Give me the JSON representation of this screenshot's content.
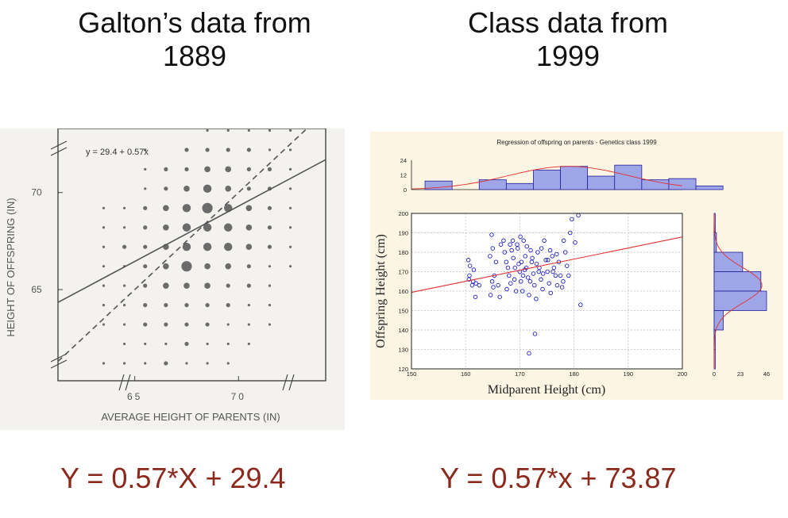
{
  "headings": {
    "left": [
      "Galton’s data from",
      "1889"
    ],
    "right": [
      "Class data from",
      "1999"
    ]
  },
  "equations": {
    "left": "Y = 0.57*X + 29.4",
    "right": "Y = 0.57*x + 73.87"
  },
  "colors": {
    "equation_text": "#8b2a1c",
    "galton_dots": "#6b6b6b",
    "class_points": "#2020c8",
    "regression_line": "#e03030",
    "histogram_fill": "#9fa6e8"
  },
  "chart_data": [
    {
      "type": "scatter",
      "title": "",
      "xlabel": "AVERAGE HEIGHT OF PARENTS (IN)",
      "ylabel": "HEIGHT OF OFFSPRING (IN)",
      "x_ticks": [
        "65",
        "70"
      ],
      "y_ticks": [
        "70",
        "65"
      ],
      "xlim": [
        61.3,
        74.2
      ],
      "ylim": [
        60.3,
        73.3
      ],
      "annotation": "y = 29.4 + 0.57x",
      "regression": {
        "slope": 0.57,
        "intercept": 29.4
      },
      "identity_line": true,
      "grid": false,
      "bubbles": [
        {
          "x": 68.5,
          "y": 73.2,
          "r": 1
        },
        {
          "x": 69.5,
          "y": 73.2,
          "r": 1
        },
        {
          "x": 70.5,
          "y": 73.2,
          "r": 1
        },
        {
          "x": 71.5,
          "y": 73.2,
          "r": 1
        },
        {
          "x": 72.5,
          "y": 73.2,
          "r": 1
        },
        {
          "x": 65.5,
          "y": 72.2,
          "r": 1
        },
        {
          "x": 67.5,
          "y": 72.2,
          "r": 2
        },
        {
          "x": 68.5,
          "y": 72.2,
          "r": 2
        },
        {
          "x": 69.5,
          "y": 72.2,
          "r": 2
        },
        {
          "x": 70.5,
          "y": 72.2,
          "r": 2
        },
        {
          "x": 71.5,
          "y": 72.2,
          "r": 1
        },
        {
          "x": 72.5,
          "y": 72.2,
          "r": 1
        },
        {
          "x": 65.5,
          "y": 71.2,
          "r": 1
        },
        {
          "x": 66.5,
          "y": 71.2,
          "r": 2
        },
        {
          "x": 67.5,
          "y": 71.2,
          "r": 2
        },
        {
          "x": 68.5,
          "y": 71.2,
          "r": 3
        },
        {
          "x": 69.5,
          "y": 71.2,
          "r": 3
        },
        {
          "x": 70.5,
          "y": 71.2,
          "r": 2
        },
        {
          "x": 71.5,
          "y": 71.2,
          "r": 2
        },
        {
          "x": 72.5,
          "y": 71.2,
          "r": 1
        },
        {
          "x": 65.5,
          "y": 70.2,
          "r": 1
        },
        {
          "x": 66.5,
          "y": 70.2,
          "r": 2
        },
        {
          "x": 67.5,
          "y": 70.2,
          "r": 3
        },
        {
          "x": 68.5,
          "y": 70.2,
          "r": 4
        },
        {
          "x": 69.5,
          "y": 70.2,
          "r": 3
        },
        {
          "x": 70.5,
          "y": 70.2,
          "r": 2
        },
        {
          "x": 71.5,
          "y": 70.2,
          "r": 2
        },
        {
          "x": 72.5,
          "y": 70.2,
          "r": 1
        },
        {
          "x": 63.5,
          "y": 69.2,
          "r": 1
        },
        {
          "x": 64.5,
          "y": 69.2,
          "r": 1
        },
        {
          "x": 65.5,
          "y": 69.2,
          "r": 2
        },
        {
          "x": 66.5,
          "y": 69.2,
          "r": 3
        },
        {
          "x": 67.5,
          "y": 69.2,
          "r": 4
        },
        {
          "x": 68.5,
          "y": 69.2,
          "r": 5
        },
        {
          "x": 69.5,
          "y": 69.2,
          "r": 4
        },
        {
          "x": 70.5,
          "y": 69.2,
          "r": 3
        },
        {
          "x": 71.5,
          "y": 69.2,
          "r": 2
        },
        {
          "x": 72.5,
          "y": 69.2,
          "r": 1
        },
        {
          "x": 63.5,
          "y": 68.2,
          "r": 1
        },
        {
          "x": 64.5,
          "y": 68.2,
          "r": 1
        },
        {
          "x": 65.5,
          "y": 68.2,
          "r": 2
        },
        {
          "x": 66.5,
          "y": 68.2,
          "r": 3
        },
        {
          "x": 67.5,
          "y": 68.2,
          "r": 4
        },
        {
          "x": 68.5,
          "y": 68.2,
          "r": 4
        },
        {
          "x": 69.5,
          "y": 68.2,
          "r": 4
        },
        {
          "x": 70.5,
          "y": 68.2,
          "r": 3
        },
        {
          "x": 71.5,
          "y": 68.2,
          "r": 2
        },
        {
          "x": 72.5,
          "y": 68.2,
          "r": 1
        },
        {
          "x": 63.5,
          "y": 67.2,
          "r": 1
        },
        {
          "x": 64.5,
          "y": 67.2,
          "r": 2
        },
        {
          "x": 65.5,
          "y": 67.2,
          "r": 2
        },
        {
          "x": 66.5,
          "y": 67.2,
          "r": 3
        },
        {
          "x": 67.5,
          "y": 67.2,
          "r": 4
        },
        {
          "x": 68.5,
          "y": 67.2,
          "r": 4
        },
        {
          "x": 69.5,
          "y": 67.2,
          "r": 4
        },
        {
          "x": 70.5,
          "y": 67.2,
          "r": 3
        },
        {
          "x": 71.5,
          "y": 67.2,
          "r": 2
        },
        {
          "x": 72.5,
          "y": 67.2,
          "r": 1
        },
        {
          "x": 63.5,
          "y": 66.2,
          "r": 1
        },
        {
          "x": 64.5,
          "y": 66.2,
          "r": 1
        },
        {
          "x": 65.5,
          "y": 66.2,
          "r": 2
        },
        {
          "x": 66.5,
          "y": 66.2,
          "r": 3
        },
        {
          "x": 67.5,
          "y": 66.2,
          "r": 5
        },
        {
          "x": 68.5,
          "y": 66.2,
          "r": 3
        },
        {
          "x": 69.5,
          "y": 66.2,
          "r": 3
        },
        {
          "x": 70.5,
          "y": 66.2,
          "r": 2
        },
        {
          "x": 71.5,
          "y": 66.2,
          "r": 1
        },
        {
          "x": 72.5,
          "y": 66.2,
          "r": 1
        },
        {
          "x": 63.5,
          "y": 65.2,
          "r": 1
        },
        {
          "x": 64.5,
          "y": 65.2,
          "r": 1
        },
        {
          "x": 65.5,
          "y": 65.2,
          "r": 2
        },
        {
          "x": 66.5,
          "y": 65.2,
          "r": 3
        },
        {
          "x": 67.5,
          "y": 65.2,
          "r": 3
        },
        {
          "x": 68.5,
          "y": 65.2,
          "r": 3
        },
        {
          "x": 69.5,
          "y": 65.2,
          "r": 2
        },
        {
          "x": 70.5,
          "y": 65.2,
          "r": 2
        },
        {
          "x": 71.5,
          "y": 65.2,
          "r": 1
        },
        {
          "x": 63.5,
          "y": 64.2,
          "r": 1
        },
        {
          "x": 64.5,
          "y": 64.2,
          "r": 1
        },
        {
          "x": 65.5,
          "y": 64.2,
          "r": 2
        },
        {
          "x": 66.5,
          "y": 64.2,
          "r": 2
        },
        {
          "x": 67.5,
          "y": 64.2,
          "r": 2
        },
        {
          "x": 68.5,
          "y": 64.2,
          "r": 2
        },
        {
          "x": 69.5,
          "y": 64.2,
          "r": 2
        },
        {
          "x": 70.5,
          "y": 64.2,
          "r": 1
        },
        {
          "x": 71.5,
          "y": 64.2,
          "r": 1
        },
        {
          "x": 63.5,
          "y": 63.2,
          "r": 1
        },
        {
          "x": 64.5,
          "y": 63.2,
          "r": 1
        },
        {
          "x": 65.5,
          "y": 63.2,
          "r": 2
        },
        {
          "x": 66.5,
          "y": 63.2,
          "r": 2
        },
        {
          "x": 67.5,
          "y": 63.2,
          "r": 2
        },
        {
          "x": 68.5,
          "y": 63.2,
          "r": 2
        },
        {
          "x": 69.5,
          "y": 63.2,
          "r": 1
        },
        {
          "x": 70.5,
          "y": 63.2,
          "r": 1
        },
        {
          "x": 71.5,
          "y": 63.2,
          "r": 1
        },
        {
          "x": 64.5,
          "y": 62.2,
          "r": 1
        },
        {
          "x": 65.5,
          "y": 62.2,
          "r": 1
        },
        {
          "x": 66.5,
          "y": 62.2,
          "r": 1
        },
        {
          "x": 67.5,
          "y": 62.2,
          "r": 2
        },
        {
          "x": 68.5,
          "y": 62.2,
          "r": 1
        },
        {
          "x": 69.5,
          "y": 62.2,
          "r": 1
        },
        {
          "x": 70.5,
          "y": 62.2,
          "r": 1
        },
        {
          "x": 63.5,
          "y": 61.2,
          "r": 1
        },
        {
          "x": 64.5,
          "y": 61.2,
          "r": 1
        },
        {
          "x": 65.5,
          "y": 61.2,
          "r": 1
        },
        {
          "x": 66.5,
          "y": 61.2,
          "r": 2
        },
        {
          "x": 67.5,
          "y": 61.2,
          "r": 1
        },
        {
          "x": 68.5,
          "y": 61.2,
          "r": 1
        },
        {
          "x": 69.5,
          "y": 61.2,
          "r": 1
        }
      ]
    },
    {
      "type": "scatter",
      "title": "Regression of offspring on parents  -  Genetics class 1999",
      "xlabel": "Midparent Height (cm)",
      "ylabel": "Offspring Height (cm)",
      "x_ticks": [
        "150",
        "160",
        "170",
        "180",
        "190",
        "200"
      ],
      "y_ticks": [
        "200",
        "190",
        "180",
        "170",
        "160",
        "150",
        "140",
        "130",
        "120"
      ],
      "xlim": [
        150,
        200
      ],
      "ylim": [
        120,
        200
      ],
      "grid": true,
      "regression": {
        "slope": 0.57,
        "intercept": 73.87
      },
      "points": [
        [
          160.5,
          176
        ],
        [
          160.8,
          173
        ],
        [
          160.6,
          166
        ],
        [
          161.2,
          163
        ],
        [
          161.8,
          157
        ],
        [
          162.5,
          163
        ],
        [
          161.4,
          165
        ],
        [
          161.9,
          164
        ],
        [
          160.7,
          168
        ],
        [
          161.5,
          171
        ],
        [
          164.8,
          189
        ],
        [
          165.0,
          182
        ],
        [
          164.5,
          178
        ],
        [
          165.3,
          168
        ],
        [
          165.1,
          162
        ],
        [
          164.6,
          158
        ],
        [
          165.6,
          175
        ],
        [
          164.9,
          165
        ],
        [
          166.0,
          163
        ],
        [
          166.3,
          157
        ],
        [
          167.0,
          186
        ],
        [
          167.5,
          175
        ],
        [
          167.8,
          172
        ],
        [
          168.0,
          168
        ],
        [
          168.3,
          164
        ],
        [
          167.6,
          161
        ],
        [
          168.5,
          181
        ],
        [
          168.8,
          177
        ],
        [
          169.0,
          166
        ],
        [
          169.3,
          160
        ],
        [
          169.5,
          184
        ],
        [
          169.8,
          174
        ],
        [
          170.0,
          170
        ],
        [
          170.2,
          165
        ],
        [
          170.5,
          160
        ],
        [
          170.7,
          186
        ],
        [
          171.0,
          178
        ],
        [
          171.2,
          172
        ],
        [
          171.5,
          167
        ],
        [
          171.7,
          158
        ],
        [
          172.0,
          181
        ],
        [
          172.2,
          175
        ],
        [
          172.5,
          169
        ],
        [
          172.7,
          163
        ],
        [
          173.0,
          156
        ],
        [
          173.3,
          180
        ],
        [
          173.6,
          172
        ],
        [
          173.9,
          166
        ],
        [
          174.2,
          161
        ],
        [
          174.5,
          186
        ],
        [
          174.8,
          176
        ],
        [
          175.1,
          170
        ],
        [
          175.4,
          164
        ],
        [
          175.7,
          159
        ],
        [
          176.0,
          178
        ],
        [
          176.3,
          172
        ],
        [
          176.6,
          168
        ],
        [
          176.9,
          163
        ],
        [
          177.2,
          175
        ],
        [
          177.5,
          168
        ],
        [
          177.8,
          162
        ],
        [
          178.1,
          186
        ],
        [
          178.4,
          180
        ],
        [
          178.7,
          173
        ],
        [
          179.0,
          168
        ],
        [
          179.3,
          190
        ],
        [
          179.6,
          197
        ],
        [
          180.2,
          185
        ],
        [
          180.8,
          199
        ],
        [
          181.2,
          153
        ],
        [
          166.5,
          184
        ],
        [
          167.2,
          180
        ],
        [
          168.2,
          184
        ],
        [
          169.6,
          182
        ],
        [
          170.3,
          175
        ],
        [
          170.9,
          171
        ],
        [
          171.3,
          183
        ],
        [
          172.3,
          177
        ],
        [
          173.5,
          170
        ],
        [
          174.0,
          182
        ],
        [
          175.2,
          176
        ],
        [
          176.1,
          170
        ],
        [
          176.8,
          179
        ],
        [
          178.0,
          165
        ],
        [
          169.1,
          172
        ],
        [
          170.6,
          168
        ],
        [
          171.9,
          165
        ],
        [
          173.1,
          174
        ],
        [
          174.3,
          169
        ],
        [
          175.6,
          181
        ],
        [
          172.8,
          138
        ],
        [
          171.7,
          128
        ],
        [
          168.7,
          186
        ],
        [
          170.1,
          188
        ]
      ],
      "top_histogram": {
        "yticks": [
          "24",
          "12",
          "0"
        ],
        "ylim": [
          0,
          24
        ],
        "bins": [
          [
            152.5,
            157.5,
            7
          ],
          [
            157.5,
            162.5,
            0
          ],
          [
            162.5,
            167.5,
            8
          ],
          [
            167.5,
            172.5,
            5
          ],
          [
            172.5,
            177.5,
            16
          ],
          [
            177.5,
            182.5,
            19
          ],
          [
            182.5,
            187.5,
            11
          ],
          [
            187.5,
            192.5,
            20
          ],
          [
            192.5,
            197.5,
            8
          ],
          [
            197.5,
            202.5,
            9
          ],
          [
            202.5,
            207.5,
            3
          ]
        ]
      },
      "right_histogram": {
        "xticks": [
          "0",
          "23",
          "46"
        ],
        "xlim": [
          0,
          46
        ],
        "bins": [
          [
            190,
            200,
            1
          ],
          [
            180,
            190,
            2
          ],
          [
            170,
            180,
            25
          ],
          [
            160,
            170,
            41
          ],
          [
            150,
            160,
            46
          ],
          [
            140,
            150,
            8
          ],
          [
            130,
            140,
            1
          ],
          [
            120,
            130,
            1
          ]
        ]
      }
    }
  ]
}
